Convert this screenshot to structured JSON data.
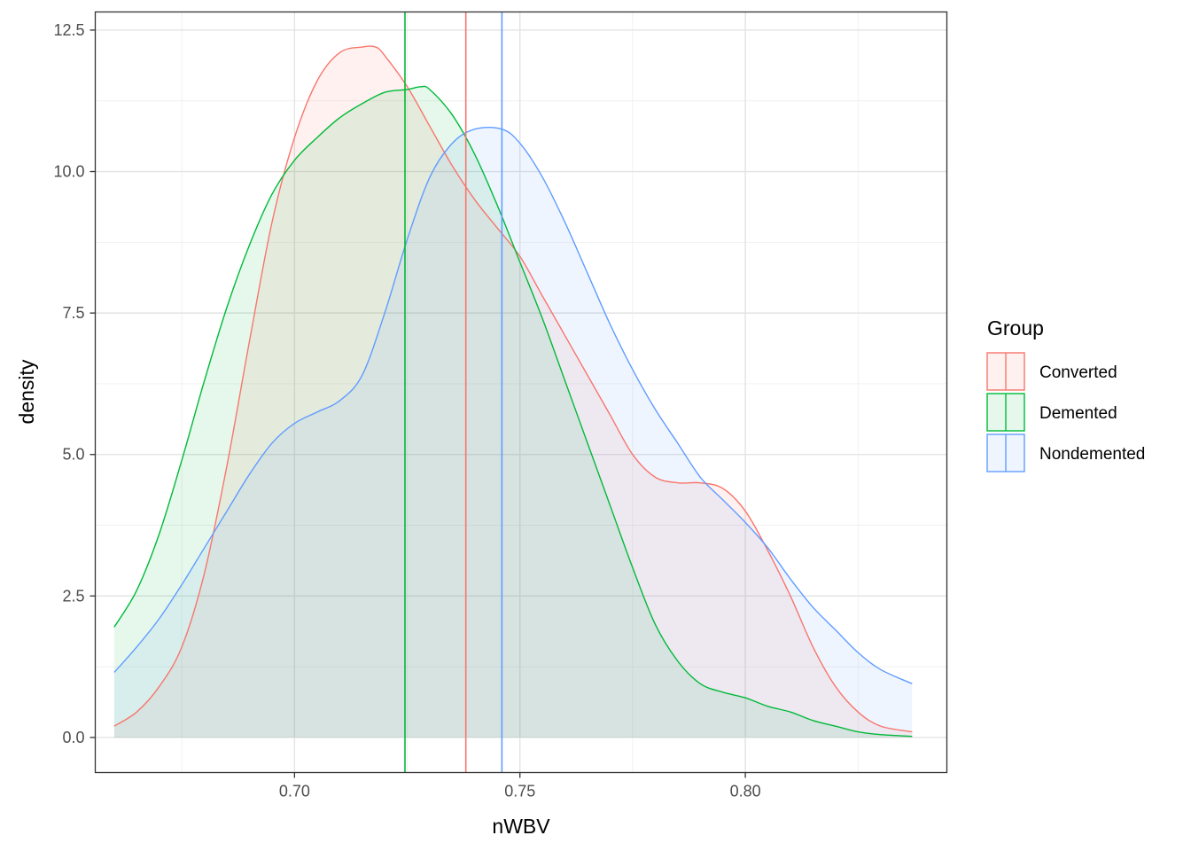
{
  "chart_data": {
    "type": "area",
    "xlabel": "nWBV",
    "ylabel": "density",
    "xlim": [
      0.6558,
      0.8447
    ],
    "ylim": [
      -0.62,
      12.82
    ],
    "x_ticks": [
      0.7,
      0.75,
      0.8
    ],
    "x_tick_labels": [
      "0.70",
      "0.75",
      "0.80"
    ],
    "y_ticks": [
      0.0,
      2.5,
      5.0,
      7.5,
      10.0,
      12.5
    ],
    "y_tick_labels": [
      "0.0",
      "2.5",
      "5.0",
      "7.5",
      "10.0",
      "12.5"
    ],
    "grid": true,
    "legend": {
      "title": "Group",
      "placement": "right"
    },
    "series": [
      {
        "name": "Converted",
        "color": "#F8766D",
        "mean_line": 0.738,
        "x": [
          0.66,
          0.665,
          0.67,
          0.675,
          0.68,
          0.685,
          0.69,
          0.695,
          0.7,
          0.705,
          0.71,
          0.715,
          0.718,
          0.72,
          0.725,
          0.73,
          0.735,
          0.74,
          0.745,
          0.75,
          0.755,
          0.76,
          0.765,
          0.77,
          0.775,
          0.78,
          0.785,
          0.79,
          0.795,
          0.8,
          0.805,
          0.81,
          0.815,
          0.82,
          0.825,
          0.83,
          0.837
        ],
        "y": [
          0.2,
          0.45,
          0.9,
          1.6,
          2.9,
          4.8,
          7.0,
          9.1,
          10.6,
          11.6,
          12.1,
          12.2,
          12.2,
          12.05,
          11.5,
          10.8,
          10.1,
          9.5,
          9.0,
          8.5,
          7.8,
          7.1,
          6.4,
          5.7,
          5.0,
          4.6,
          4.5,
          4.5,
          4.4,
          4.0,
          3.3,
          2.5,
          1.6,
          0.9,
          0.45,
          0.2,
          0.1
        ]
      },
      {
        "name": "Demented",
        "color": "#00BA38",
        "mean_line": 0.7245,
        "x": [
          0.66,
          0.665,
          0.67,
          0.675,
          0.68,
          0.685,
          0.69,
          0.695,
          0.7,
          0.705,
          0.71,
          0.715,
          0.72,
          0.725,
          0.728,
          0.73,
          0.735,
          0.74,
          0.745,
          0.75,
          0.755,
          0.76,
          0.765,
          0.77,
          0.775,
          0.78,
          0.785,
          0.79,
          0.795,
          0.8,
          0.805,
          0.81,
          0.815,
          0.82,
          0.825,
          0.83,
          0.837
        ],
        "y": [
          1.95,
          2.6,
          3.6,
          4.9,
          6.3,
          7.6,
          8.7,
          9.6,
          10.2,
          10.6,
          10.95,
          11.2,
          11.4,
          11.45,
          11.5,
          11.45,
          11.0,
          10.3,
          9.4,
          8.4,
          7.4,
          6.3,
          5.2,
          4.1,
          3.0,
          2.0,
          1.35,
          0.95,
          0.8,
          0.7,
          0.55,
          0.45,
          0.3,
          0.2,
          0.1,
          0.05,
          0.02
        ]
      },
      {
        "name": "Nondemented",
        "color": "#619CFF",
        "mean_line": 0.746,
        "x": [
          0.66,
          0.665,
          0.67,
          0.675,
          0.68,
          0.685,
          0.69,
          0.695,
          0.7,
          0.705,
          0.71,
          0.715,
          0.72,
          0.725,
          0.73,
          0.735,
          0.74,
          0.746,
          0.75,
          0.755,
          0.76,
          0.765,
          0.77,
          0.775,
          0.78,
          0.785,
          0.79,
          0.795,
          0.8,
          0.805,
          0.81,
          0.815,
          0.82,
          0.825,
          0.83,
          0.837
        ],
        "y": [
          1.15,
          1.6,
          2.1,
          2.7,
          3.35,
          4.0,
          4.65,
          5.2,
          5.55,
          5.75,
          5.95,
          6.4,
          7.5,
          8.8,
          9.9,
          10.5,
          10.75,
          10.75,
          10.5,
          9.9,
          9.1,
          8.2,
          7.3,
          6.5,
          5.8,
          5.2,
          4.6,
          4.2,
          3.8,
          3.35,
          2.8,
          2.3,
          1.9,
          1.5,
          1.2,
          0.95
        ]
      }
    ]
  }
}
